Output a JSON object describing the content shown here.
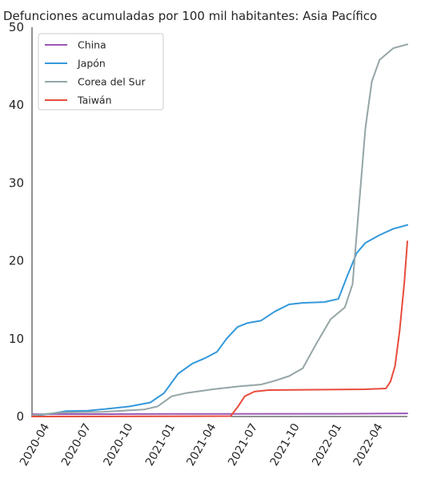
{
  "chart_data": {
    "type": "line",
    "title": "Defunciones acumuladas por 100 mil habitantes: Asia Pacífico",
    "xlabel": "",
    "ylabel": "",
    "x_ticks": [
      "2020-04",
      "2020-07",
      "2020-10",
      "2021-01",
      "2021-04",
      "2021-07",
      "2021-10",
      "2022-01",
      "2022-04"
    ],
    "y_ticks": [
      "0",
      "10",
      "20",
      "30",
      "40",
      "50"
    ],
    "ylim": [
      0,
      50
    ],
    "xlim": [
      "2020-03-01",
      "2022-06-01"
    ],
    "grid": false,
    "legend_position": "top-left",
    "series": [
      {
        "name": "China",
        "color": "#9b59b6",
        "points": [
          [
            "2020-03-01",
            0.3
          ],
          [
            "2021-01-01",
            0.33
          ],
          [
            "2022-01-01",
            0.35
          ],
          [
            "2022-06-01",
            0.4
          ]
        ]
      },
      {
        "name": "Japón",
        "color": "#3498db",
        "points": [
          [
            "2020-03-01",
            0.05
          ],
          [
            "2020-04-15",
            0.4
          ],
          [
            "2020-05-15",
            0.7
          ],
          [
            "2020-07-01",
            0.75
          ],
          [
            "2020-08-15",
            1.0
          ],
          [
            "2020-10-01",
            1.3
          ],
          [
            "2020-11-15",
            1.8
          ],
          [
            "2020-12-15",
            3.0
          ],
          [
            "2021-01-15",
            5.5
          ],
          [
            "2021-02-15",
            6.8
          ],
          [
            "2021-03-15",
            7.5
          ],
          [
            "2021-04-10",
            8.3
          ],
          [
            "2021-05-01",
            10.0
          ],
          [
            "2021-05-25",
            11.5
          ],
          [
            "2021-06-15",
            12.0
          ],
          [
            "2021-07-15",
            12.3
          ],
          [
            "2021-08-15",
            13.5
          ],
          [
            "2021-09-15",
            14.4
          ],
          [
            "2021-10-15",
            14.6
          ],
          [
            "2021-12-01",
            14.7
          ],
          [
            "2022-01-01",
            15.1
          ],
          [
            "2022-01-20",
            18.0
          ],
          [
            "2022-02-10",
            21.0
          ],
          [
            "2022-03-01",
            22.3
          ],
          [
            "2022-04-01",
            23.3
          ],
          [
            "2022-05-01",
            24.1
          ],
          [
            "2022-06-01",
            24.6
          ]
        ]
      },
      {
        "name": "Corea del Sur",
        "color": "#95a5a6",
        "points": [
          [
            "2020-03-01",
            0.15
          ],
          [
            "2020-05-01",
            0.5
          ],
          [
            "2020-08-01",
            0.6
          ],
          [
            "2020-11-01",
            0.9
          ],
          [
            "2020-12-01",
            1.3
          ],
          [
            "2021-01-01",
            2.6
          ],
          [
            "2021-02-01",
            3.0
          ],
          [
            "2021-04-01",
            3.5
          ],
          [
            "2021-06-01",
            3.9
          ],
          [
            "2021-07-15",
            4.1
          ],
          [
            "2021-08-15",
            4.6
          ],
          [
            "2021-09-15",
            5.2
          ],
          [
            "2021-10-15",
            6.2
          ],
          [
            "2021-11-15",
            9.5
          ],
          [
            "2021-12-15",
            12.5
          ],
          [
            "2022-01-15",
            14.0
          ],
          [
            "2022-02-01",
            17.0
          ],
          [
            "2022-02-15",
            27.0
          ],
          [
            "2022-03-01",
            37.0
          ],
          [
            "2022-03-15",
            43.0
          ],
          [
            "2022-04-01",
            45.8
          ],
          [
            "2022-05-01",
            47.3
          ],
          [
            "2022-06-01",
            47.8
          ]
        ]
      },
      {
        "name": "Taiwán",
        "color": "#e74c3c",
        "points": [
          [
            "2020-03-01",
            0.0
          ],
          [
            "2021-05-10",
            0.05
          ],
          [
            "2021-05-25",
            1.2
          ],
          [
            "2021-06-10",
            2.6
          ],
          [
            "2021-07-01",
            3.2
          ],
          [
            "2021-08-01",
            3.4
          ],
          [
            "2022-03-01",
            3.5
          ],
          [
            "2022-04-15",
            3.6
          ],
          [
            "2022-04-25",
            4.5
          ],
          [
            "2022-05-05",
            6.5
          ],
          [
            "2022-05-15",
            11.0
          ],
          [
            "2022-05-25",
            17.0
          ],
          [
            "2022-06-01",
            22.5
          ]
        ]
      }
    ]
  }
}
